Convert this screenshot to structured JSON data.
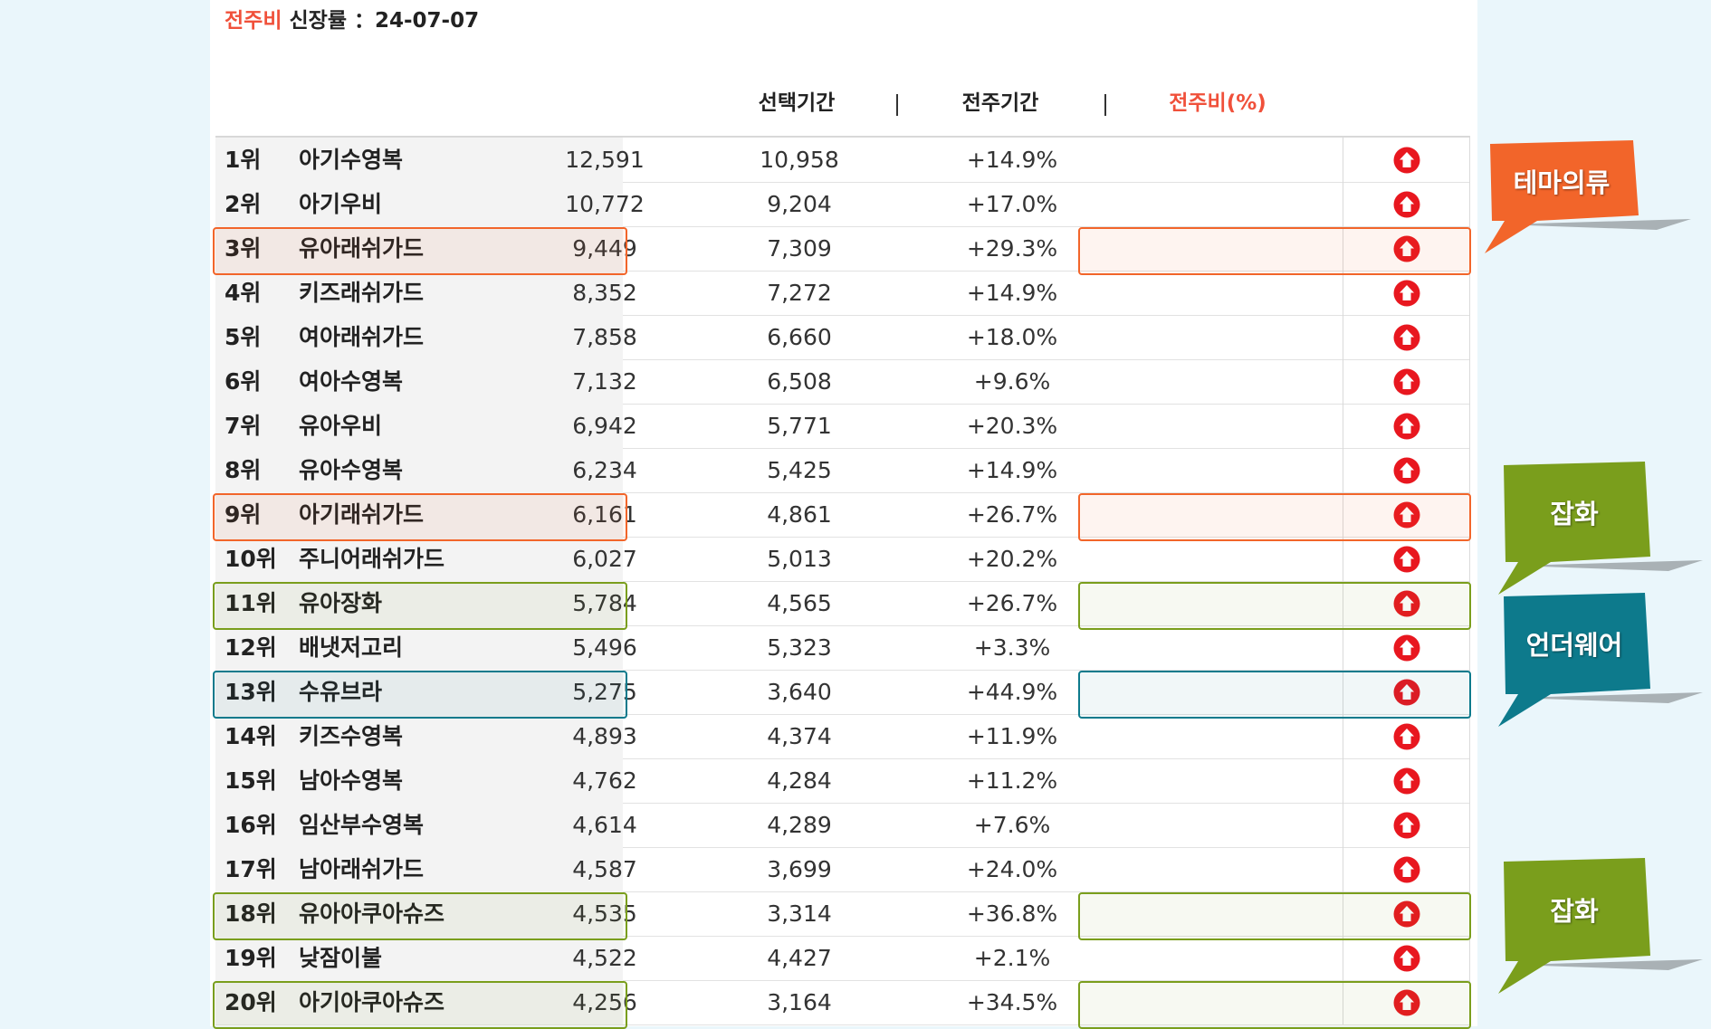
{
  "header": {
    "title_accent": "전주비",
    "title_rest": "신장률 ：24-07-07",
    "columns": {
      "selected": "선택기간",
      "previous": "전주기간",
      "ratio": "전주비(%)",
      "separator": "|"
    }
  },
  "colors": {
    "accent": "#f0503a",
    "up_icon": "#e8171f",
    "highlight_orange": "#f2652a",
    "highlight_green": "#7a9e1c",
    "highlight_teal": "#0d7a8c"
  },
  "rows": [
    {
      "rank": "1위",
      "name": "아기수영복",
      "selected": "12,591",
      "previous": "10,958",
      "ratio": "+14.9%",
      "highlight": ""
    },
    {
      "rank": "2위",
      "name": "아기우비",
      "selected": "10,772",
      "previous": "9,204",
      "ratio": "+17.0%",
      "highlight": ""
    },
    {
      "rank": "3위",
      "name": "유아래쉬가드",
      "selected": "9,449",
      "previous": "7,309",
      "ratio": "+29.3%",
      "highlight": "orange"
    },
    {
      "rank": "4위",
      "name": "키즈래쉬가드",
      "selected": "8,352",
      "previous": "7,272",
      "ratio": "+14.9%",
      "highlight": ""
    },
    {
      "rank": "5위",
      "name": "여아래쉬가드",
      "selected": "7,858",
      "previous": "6,660",
      "ratio": "+18.0%",
      "highlight": ""
    },
    {
      "rank": "6위",
      "name": "여아수영복",
      "selected": "7,132",
      "previous": "6,508",
      "ratio": "+9.6%",
      "highlight": ""
    },
    {
      "rank": "7위",
      "name": "유아우비",
      "selected": "6,942",
      "previous": "5,771",
      "ratio": "+20.3%",
      "highlight": ""
    },
    {
      "rank": "8위",
      "name": "유아수영복",
      "selected": "6,234",
      "previous": "5,425",
      "ratio": "+14.9%",
      "highlight": ""
    },
    {
      "rank": "9위",
      "name": "아기래쉬가드",
      "selected": "6,161",
      "previous": "4,861",
      "ratio": "+26.7%",
      "highlight": "orange"
    },
    {
      "rank": "10위",
      "name": "주니어래쉬가드",
      "selected": "6,027",
      "previous": "5,013",
      "ratio": "+20.2%",
      "highlight": ""
    },
    {
      "rank": "11위",
      "name": "유아장화",
      "selected": "5,784",
      "previous": "4,565",
      "ratio": "+26.7%",
      "highlight": "green"
    },
    {
      "rank": "12위",
      "name": "배냇저고리",
      "selected": "5,496",
      "previous": "5,323",
      "ratio": "+3.3%",
      "highlight": ""
    },
    {
      "rank": "13위",
      "name": "수유브라",
      "selected": "5,275",
      "previous": "3,640",
      "ratio": "+44.9%",
      "highlight": "teal"
    },
    {
      "rank": "14위",
      "name": "키즈수영복",
      "selected": "4,893",
      "previous": "4,374",
      "ratio": "+11.9%",
      "highlight": ""
    },
    {
      "rank": "15위",
      "name": "남아수영복",
      "selected": "4,762",
      "previous": "4,284",
      "ratio": "+11.2%",
      "highlight": ""
    },
    {
      "rank": "16위",
      "name": "임산부수영복",
      "selected": "4,614",
      "previous": "4,289",
      "ratio": "+7.6%",
      "highlight": ""
    },
    {
      "rank": "17위",
      "name": "남아래쉬가드",
      "selected": "4,587",
      "previous": "3,699",
      "ratio": "+24.0%",
      "highlight": ""
    },
    {
      "rank": "18위",
      "name": "유아아쿠아슈즈",
      "selected": "4,535",
      "previous": "3,314",
      "ratio": "+36.8%",
      "highlight": "green"
    },
    {
      "rank": "19위",
      "name": "낮잠이불",
      "selected": "4,522",
      "previous": "4,427",
      "ratio": "+2.1%",
      "highlight": ""
    },
    {
      "rank": "20위",
      "name": "아기아쿠아슈즈",
      "selected": "4,256",
      "previous": "3,164",
      "ratio": "+34.5%",
      "highlight": "green"
    }
  ],
  "tags": [
    {
      "label": "테마의류",
      "color": "#f2652a",
      "row": 1
    },
    {
      "label": "잡화",
      "color": "#7a9e1c",
      "row": 8
    },
    {
      "label": "언더웨어",
      "color": "#0d7a8c",
      "row": 11
    },
    {
      "label": "잡화",
      "color": "#7a9e1c",
      "row": 17
    }
  ]
}
